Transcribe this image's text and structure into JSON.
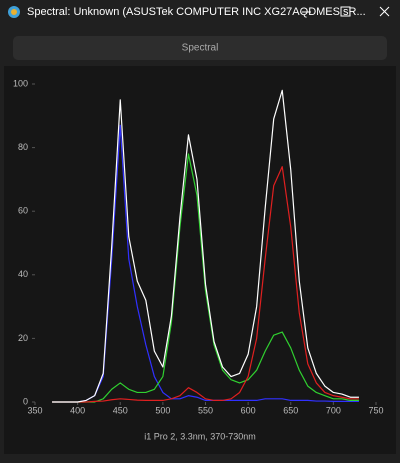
{
  "window": {
    "title": "Spectral: Unknown (ASUSTek COMPUTER INC XG27AQDMES sR..."
  },
  "toolbar": {
    "button": "Spectral"
  },
  "chart_data": {
    "type": "line",
    "xlabel": "i1 Pro 2, 3.3nm, 370-730nm",
    "x": [
      370,
      380,
      390,
      400,
      410,
      420,
      430,
      440,
      450,
      460,
      470,
      480,
      490,
      500,
      510,
      520,
      530,
      540,
      550,
      560,
      570,
      580,
      590,
      600,
      610,
      620,
      630,
      640,
      650,
      660,
      670,
      680,
      690,
      700,
      710,
      720,
      730
    ],
    "series": [
      {
        "color": "#ffffff",
        "values": [
          0,
          0,
          0,
          0,
          0.5,
          2,
          9,
          49,
          95,
          52,
          38,
          32,
          16,
          11,
          27,
          58,
          84,
          70,
          37,
          19,
          11,
          8,
          9,
          15,
          30,
          61,
          89,
          98,
          73,
          38,
          17,
          9,
          5,
          3,
          2.5,
          1.5,
          1.5
        ]
      },
      {
        "color": "#e02020",
        "values": [
          0,
          0,
          0,
          0,
          0,
          0.2,
          0.3,
          0.7,
          1,
          0.8,
          0.6,
          0.5,
          0.5,
          0.5,
          1,
          2,
          4.5,
          3,
          1,
          0.5,
          0.5,
          1,
          3,
          8,
          20,
          45,
          68,
          74,
          55,
          28,
          12,
          6,
          3,
          2,
          1.5,
          1,
          1
        ]
      },
      {
        "color": "#30d030",
        "values": [
          0,
          0,
          0,
          0,
          0,
          0,
          1,
          4,
          6,
          4,
          3,
          3,
          4,
          8,
          25,
          55,
          78,
          65,
          35,
          18,
          10,
          7,
          6,
          7,
          10,
          16,
          21,
          22,
          17,
          10,
          5,
          3,
          2,
          1,
          1,
          0.5,
          0.5
        ]
      },
      {
        "color": "#3030ff",
        "values": [
          0,
          0,
          0,
          0,
          0.5,
          2,
          8,
          45,
          87,
          45,
          30,
          18,
          8,
          3,
          1,
          1,
          2,
          1.5,
          0.5,
          0.5,
          0.5,
          0.5,
          0.5,
          0.5,
          0.5,
          1,
          1,
          1,
          0.5,
          0.5,
          0.5,
          0.3,
          0.3,
          0.2,
          0.2,
          0.2,
          0.2
        ]
      }
    ],
    "xlim": [
      350,
      750
    ],
    "ylim": [
      0,
      100
    ],
    "xticks": [
      350,
      400,
      450,
      500,
      550,
      600,
      650,
      700,
      750
    ],
    "yticks": [
      0,
      20,
      40,
      60,
      80,
      100
    ]
  }
}
